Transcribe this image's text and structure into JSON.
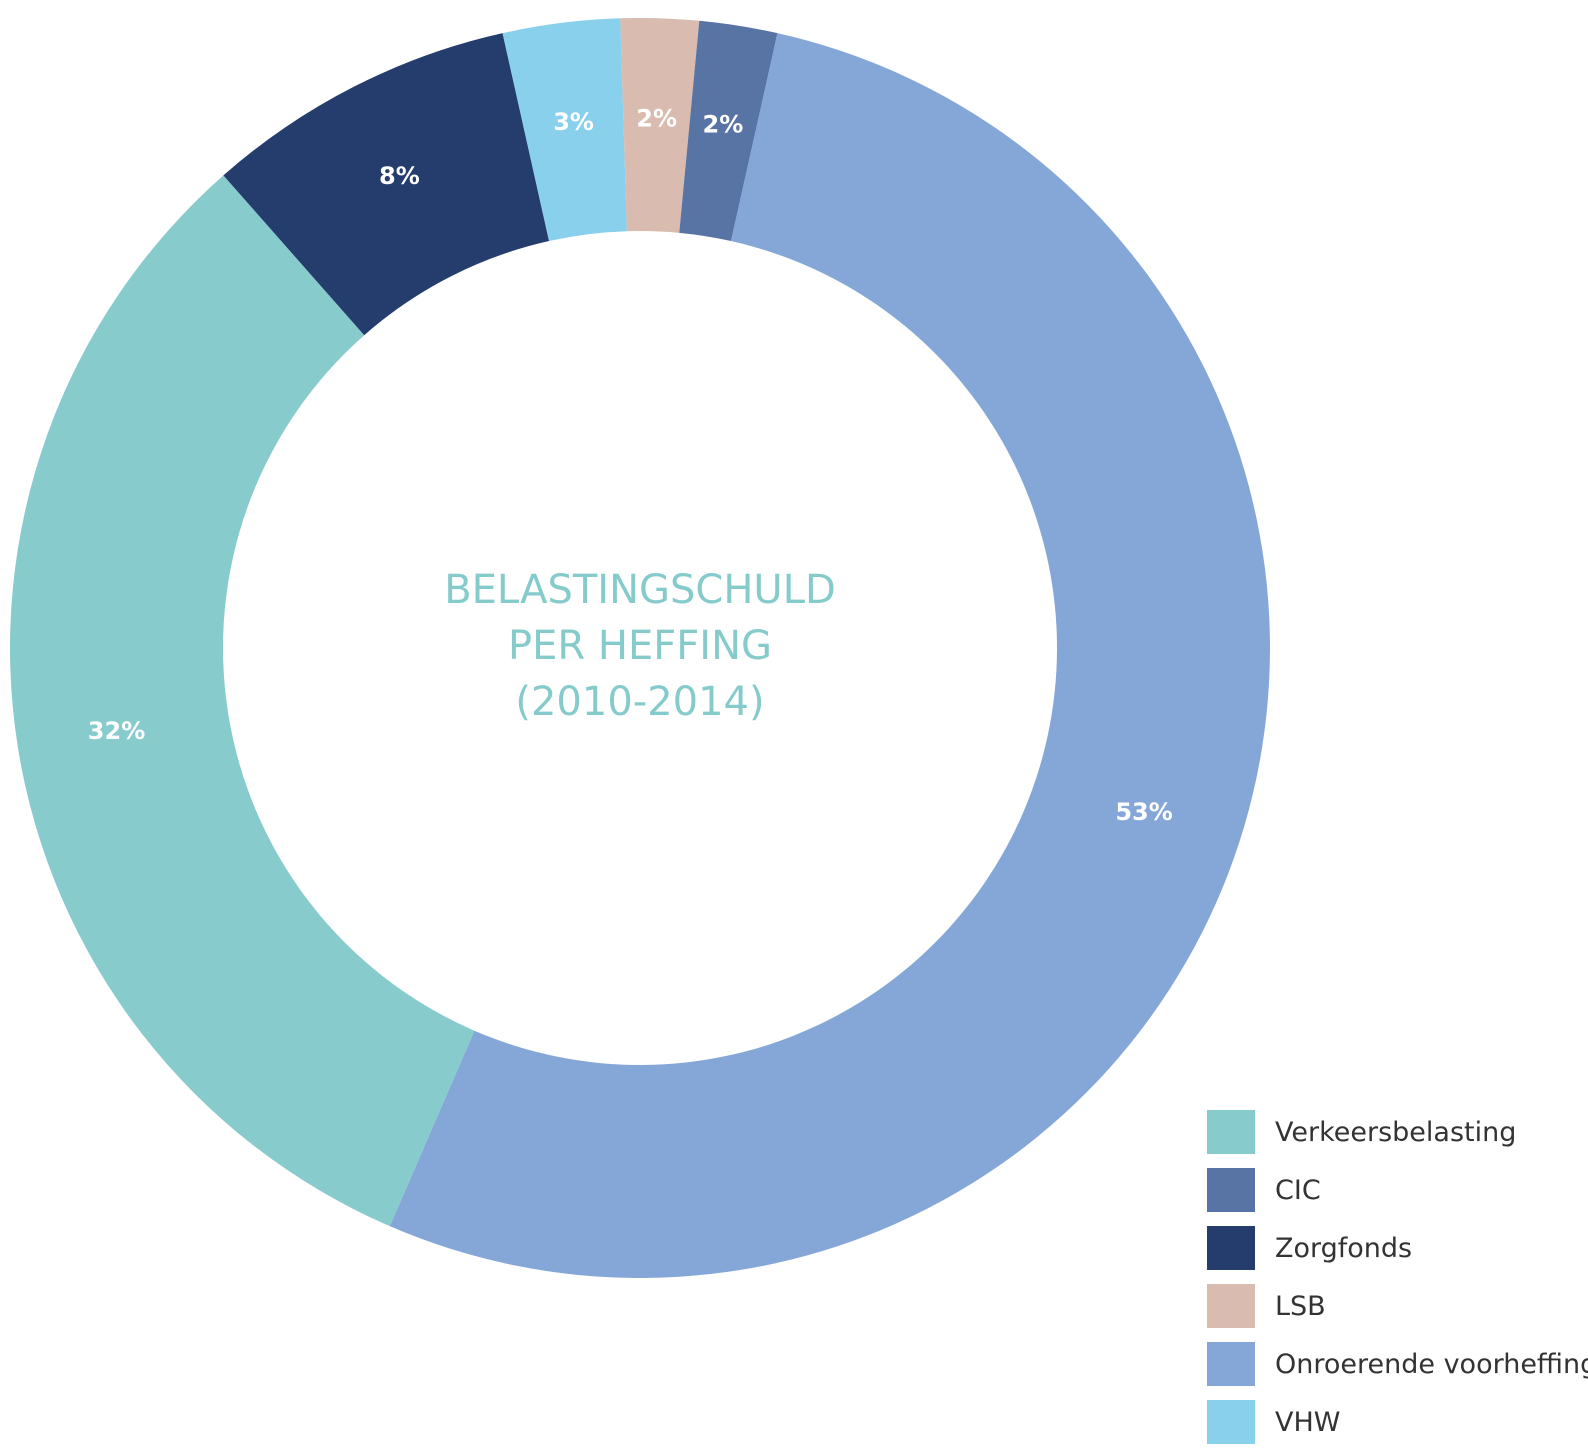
{
  "chart_data": {
    "type": "pie",
    "variant": "donut",
    "title_lines": [
      "BELASTINGSCHULD",
      "PER HEFFING",
      "(2010-2014)"
    ],
    "slices": [
      {
        "name": "Onroerende voorheffing",
        "value": 53,
        "label": "53%",
        "color": "#85a7d8"
      },
      {
        "name": "Verkeersbelasting",
        "value": 32,
        "label": "32%",
        "color": "#87cbcd"
      },
      {
        "name": "Zorgfonds",
        "value": 8,
        "label": "8%",
        "color": "#243d6d"
      },
      {
        "name": "VHW",
        "value": 3,
        "label": "3%",
        "color": "#89d0ec"
      },
      {
        "name": "LSB",
        "value": 2,
        "label": "2%",
        "color": "#d9bbb0"
      },
      {
        "name": "CIC",
        "value": 2,
        "label": "2%",
        "color": "#5874a5"
      }
    ],
    "legend": {
      "position": "bottom-right",
      "items": [
        {
          "name": "Verkeersbelasting",
          "color": "#87cbcd"
        },
        {
          "name": "CIC",
          "color": "#5874a5"
        },
        {
          "name": "Zorgfonds",
          "color": "#243d6d"
        },
        {
          "name": "LSB",
          "color": "#d9bbb0"
        },
        {
          "name": "Onroerende voorheffing",
          "color": "#85a7d8"
        },
        {
          "name": "VHW",
          "color": "#89d0ec"
        }
      ]
    }
  }
}
